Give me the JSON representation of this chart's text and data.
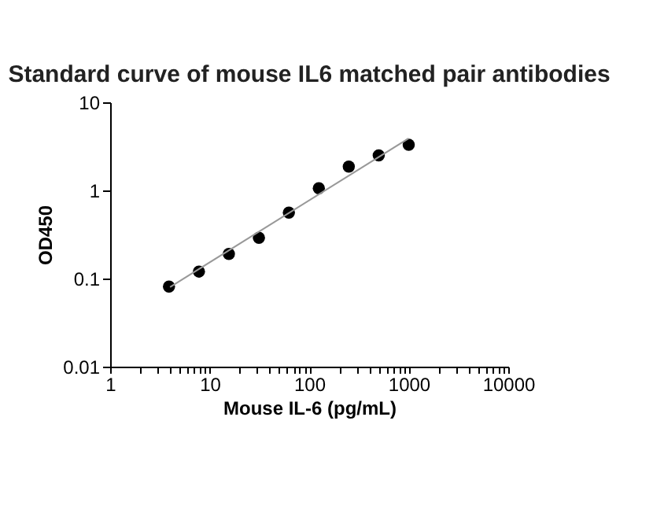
{
  "chart_data": {
    "type": "scatter",
    "title": "Standard curve of mouse IL6 matched pair antibodies",
    "xlabel": "Mouse IL-6 (pg/mL)",
    "ylabel": "OD450",
    "log": "xy",
    "grid": false,
    "xlim": [
      1,
      10000
    ],
    "ylim": [
      0.01,
      10
    ],
    "xticks": [
      1,
      {
        "value": 2,
        "label": null
      },
      {
        "value": 3,
        "label": null
      },
      {
        "value": 4,
        "label": null
      },
      {
        "value": 5,
        "label": null
      },
      {
        "value": 6,
        "label": null
      },
      {
        "value": 7,
        "label": null
      },
      {
        "value": 8,
        "label": null
      },
      {
        "value": 9,
        "label": null
      },
      10,
      {
        "value": 20,
        "label": null
      },
      {
        "value": 30,
        "label": null
      },
      {
        "value": 40,
        "label": null
      },
      {
        "value": 50,
        "label": null
      },
      {
        "value": 60,
        "label": null
      },
      {
        "value": 70,
        "label": null
      },
      {
        "value": 80,
        "label": null
      },
      {
        "value": 90,
        "label": null
      },
      100,
      {
        "value": 200,
        "label": null
      },
      {
        "value": 300,
        "label": null
      },
      {
        "value": 400,
        "label": null
      },
      {
        "value": 500,
        "label": null
      },
      {
        "value": 600,
        "label": null
      },
      {
        "value": 700,
        "label": null
      },
      {
        "value": 800,
        "label": null
      },
      {
        "value": 900,
        "label": null
      },
      1000,
      {
        "value": 2000,
        "label": null
      },
      {
        "value": 3000,
        "label": null
      },
      {
        "value": 4000,
        "label": null
      },
      {
        "value": 5000,
        "label": null
      },
      {
        "value": 6000,
        "label": null
      },
      {
        "value": 7000,
        "label": null
      },
      {
        "value": 8000,
        "label": null
      },
      {
        "value": 9000,
        "label": null
      },
      10000
    ],
    "yticks": [
      0.01,
      0.1,
      1,
      10
    ],
    "series": [
      {
        "marker": "circle",
        "color": "#000000",
        "x": [
          3.9,
          7.8,
          15.6,
          31.25,
          62.5,
          125,
          250,
          500,
          1000
        ],
        "values": [
          0.081,
          0.12,
          0.19,
          0.29,
          0.56,
          1.06,
          1.86,
          2.5,
          3.3
        ]
      },
      {
        "type": "line",
        "color": "#999999",
        "marker": "none",
        "line_style": "solid",
        "x": [
          4,
          1000
        ],
        "values": [
          0.08,
          3.9
        ]
      }
    ]
  }
}
